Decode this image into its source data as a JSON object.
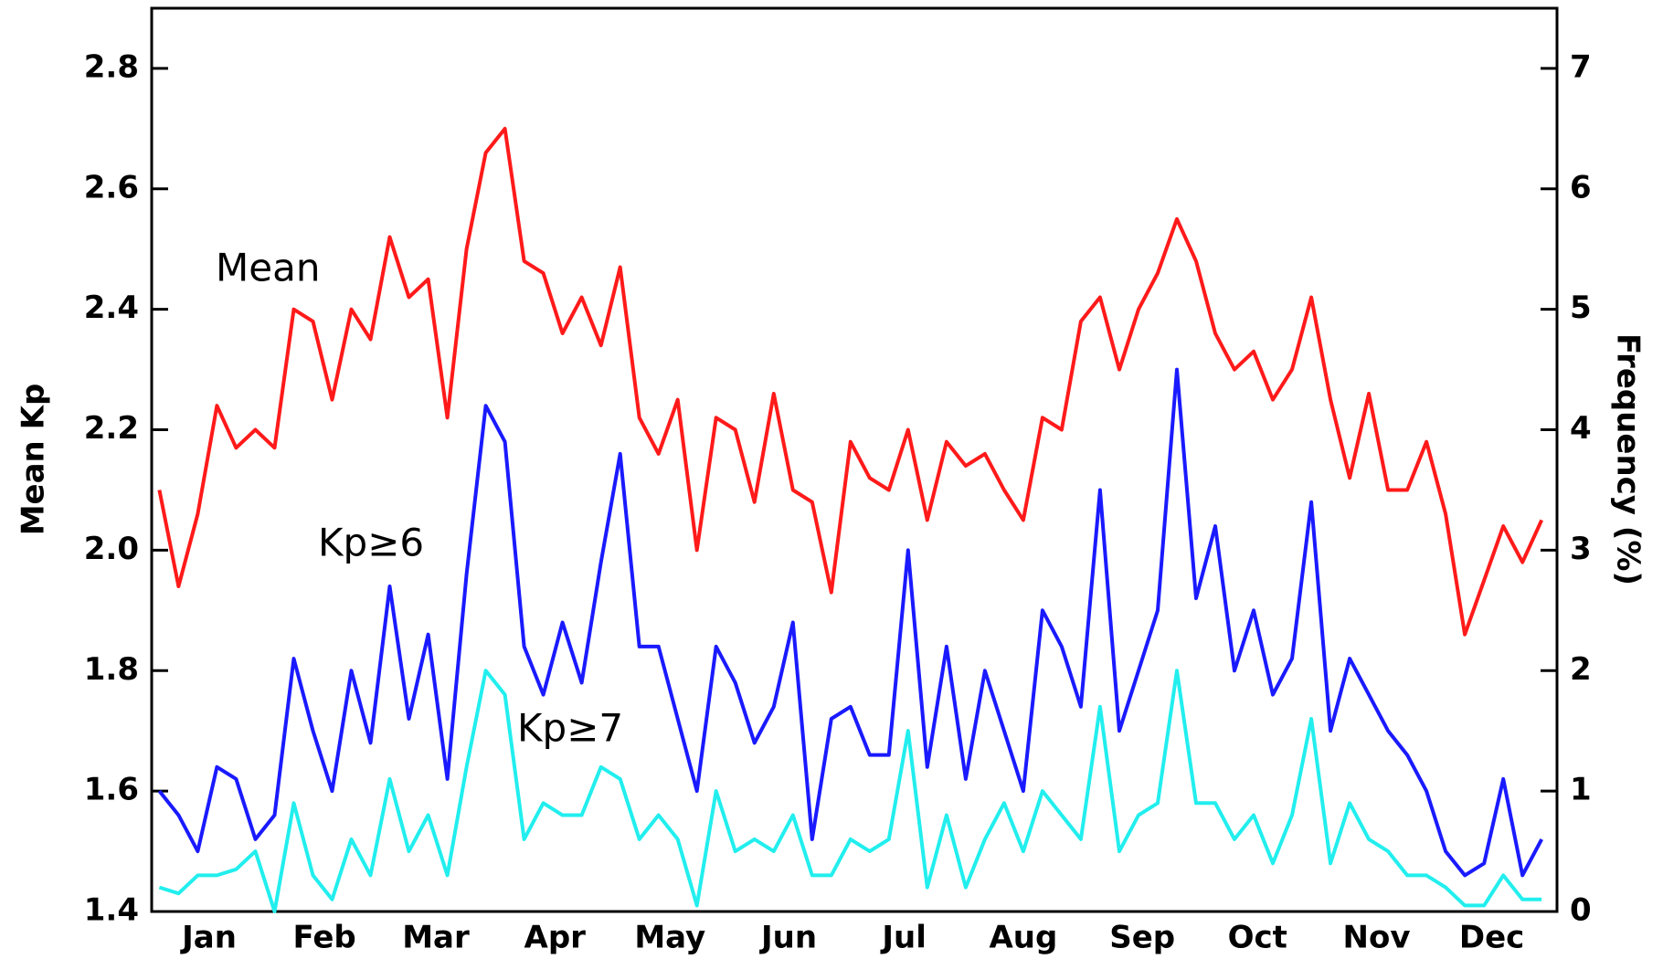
{
  "chart_data": {
    "type": "line",
    "y_label": "Mean Kp",
    "y2_label": "Frequency  (%)",
    "x": [
      2,
      7,
      12,
      17,
      22,
      27,
      32,
      37,
      42,
      47,
      52,
      57,
      62,
      67,
      72,
      77,
      82,
      87,
      92,
      97,
      102,
      107,
      112,
      117,
      122,
      127,
      132,
      137,
      142,
      147,
      152,
      157,
      162,
      167,
      172,
      177,
      182,
      187,
      192,
      197,
      202,
      207,
      212,
      217,
      222,
      227,
      232,
      237,
      242,
      247,
      252,
      257,
      262,
      267,
      272,
      277,
      282,
      287,
      292,
      297,
      302,
      307,
      312,
      317,
      322,
      327,
      332,
      337,
      342,
      347,
      352,
      357,
      362
    ],
    "xlim": [
      0,
      366
    ],
    "xticks": [
      {
        "value": 15,
        "label": "Jan"
      },
      {
        "value": 45,
        "label": "Feb"
      },
      {
        "value": 74,
        "label": "Mar"
      },
      {
        "value": 105,
        "label": "Apr"
      },
      {
        "value": 135,
        "label": "May"
      },
      {
        "value": 166,
        "label": "Jun"
      },
      {
        "value": 196,
        "label": "Jul"
      },
      {
        "value": 227,
        "label": "Aug"
      },
      {
        "value": 258,
        "label": "Sep"
      },
      {
        "value": 288,
        "label": "Oct"
      },
      {
        "value": 319,
        "label": "Nov"
      },
      {
        "value": 349,
        "label": "Dec"
      }
    ],
    "ylim": [
      1.4,
      2.9
    ],
    "yticks": [
      1.4,
      1.6,
      1.8,
      {
        "value": 2,
        "label": "2.0"
      },
      2.2,
      2.4,
      2.6,
      2.8
    ],
    "y2lim": [
      0,
      7.5
    ],
    "y2ticks": [
      0,
      1,
      2,
      3,
      4,
      5,
      6,
      7
    ],
    "series": [
      {
        "name": "Mean",
        "color": "#ff1a1a",
        "axis": "y",
        "values": [
          2.1,
          1.94,
          2.06,
          2.24,
          2.17,
          2.2,
          2.17,
          2.4,
          2.38,
          2.25,
          2.4,
          2.35,
          2.52,
          2.42,
          2.45,
          2.22,
          2.5,
          2.66,
          2.7,
          2.48,
          2.46,
          2.36,
          2.42,
          2.34,
          2.47,
          2.22,
          2.16,
          2.25,
          2.0,
          2.22,
          2.2,
          2.08,
          2.26,
          2.1,
          2.08,
          1.93,
          2.18,
          2.12,
          2.1,
          2.2,
          2.05,
          2.18,
          2.14,
          2.16,
          2.1,
          2.05,
          2.22,
          2.2,
          2.38,
          2.42,
          2.3,
          2.4,
          2.46,
          2.55,
          2.48,
          2.36,
          2.3,
          2.33,
          2.25,
          2.3,
          2.42,
          2.25,
          2.12,
          2.26,
          2.1,
          2.1,
          2.18,
          2.06,
          1.86,
          1.95,
          2.04,
          1.98,
          2.05
        ]
      },
      {
        "name": "Kp≥6",
        "color": "#1a1aff",
        "axis": "y2",
        "values": [
          1.0,
          0.8,
          0.5,
          1.2,
          1.1,
          0.6,
          0.8,
          2.1,
          1.5,
          1.0,
          2.0,
          1.4,
          2.7,
          1.6,
          2.3,
          1.1,
          2.8,
          4.2,
          3.9,
          2.2,
          1.8,
          2.4,
          1.9,
          2.9,
          3.8,
          2.2,
          2.2,
          1.6,
          1.0,
          2.2,
          1.9,
          1.4,
          1.7,
          2.4,
          0.6,
          1.6,
          1.7,
          1.3,
          1.3,
          3.0,
          1.2,
          2.2,
          1.1,
          2.0,
          1.5,
          1.0,
          2.5,
          2.2,
          1.7,
          3.5,
          1.5,
          2.0,
          2.5,
          4.5,
          2.6,
          3.2,
          2.0,
          2.5,
          1.8,
          2.1,
          3.4,
          1.5,
          2.1,
          1.8,
          1.5,
          1.3,
          1.0,
          0.5,
          0.3,
          0.4,
          1.1,
          0.3,
          0.6
        ]
      },
      {
        "name": "Kp≥7",
        "color": "#22eeee",
        "axis": "y2",
        "values": [
          0.2,
          0.15,
          0.3,
          0.3,
          0.35,
          0.5,
          0.0,
          0.9,
          0.3,
          0.1,
          0.6,
          0.3,
          1.1,
          0.5,
          0.8,
          0.3,
          1.2,
          2.0,
          1.8,
          0.6,
          0.9,
          0.8,
          0.8,
          1.2,
          1.1,
          0.6,
          0.8,
          0.6,
          0.05,
          1.0,
          0.5,
          0.6,
          0.5,
          0.8,
          0.3,
          0.3,
          0.6,
          0.5,
          0.6,
          1.5,
          0.2,
          0.8,
          0.2,
          0.6,
          0.9,
          0.5,
          1.0,
          0.8,
          0.6,
          1.7,
          0.5,
          0.8,
          0.9,
          2.0,
          0.9,
          0.9,
          0.6,
          0.8,
          0.4,
          0.8,
          1.6,
          0.4,
          0.9,
          0.6,
          0.5,
          0.3,
          0.3,
          0.2,
          0.05,
          0.05,
          0.3,
          0.1,
          0.1
        ]
      }
    ]
  }
}
